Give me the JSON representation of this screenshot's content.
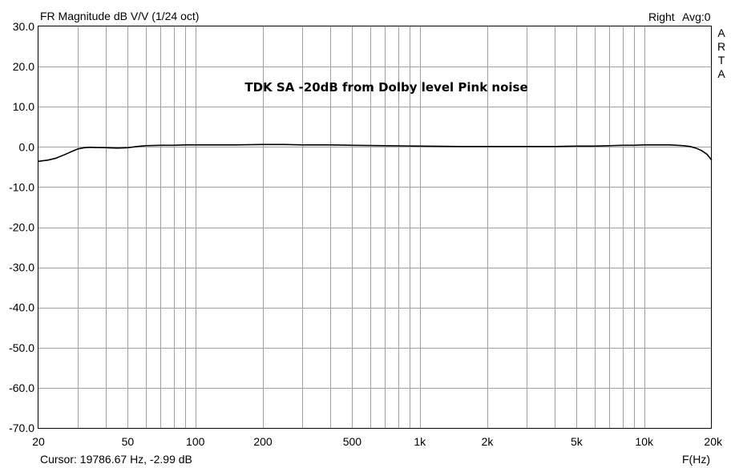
{
  "header": {
    "title": "FR Magnitude dB V/V (1/24 oct)",
    "channel": "Right",
    "averaging": "Avg:0"
  },
  "brand_letters": [
    "A",
    "R",
    "T",
    "A"
  ],
  "footer": {
    "cursor": "Cursor: 19786.67 Hz, -2.99 dB",
    "xaxis_label": "F(Hz)"
  },
  "colors": {
    "grid": "#a0a0a0",
    "trace": "#000000",
    "background": "#ffffff"
  },
  "chart_data": {
    "type": "line",
    "title": "TDK SA -20dB from Dolby level Pink noise",
    "xlabel": "F(Hz)",
    "ylabel": "dB V/V",
    "x_scale": "log",
    "xlim": [
      20,
      20000
    ],
    "ylim": [
      -70,
      30
    ],
    "grid": true,
    "y_ticks": [
      "30.0",
      "20.0",
      "10.0",
      "0.0",
      "-10.0",
      "-20.0",
      "-30.0",
      "-40.0",
      "-50.0",
      "-60.0",
      "-70.0"
    ],
    "x_ticks": [
      {
        "value": 20,
        "label": "20"
      },
      {
        "value": 50,
        "label": "50"
      },
      {
        "value": 100,
        "label": "100"
      },
      {
        "value": 200,
        "label": "200"
      },
      {
        "value": 500,
        "label": "500"
      },
      {
        "value": 1000,
        "label": "1k"
      },
      {
        "value": 2000,
        "label": "2k"
      },
      {
        "value": 5000,
        "label": "5k"
      },
      {
        "value": 10000,
        "label": "10k"
      },
      {
        "value": 20000,
        "label": "20k"
      }
    ],
    "series": [
      {
        "x": [
          20,
          22,
          24,
          26,
          28,
          30,
          32,
          34,
          36,
          40,
          45,
          50,
          55,
          60,
          70,
          80,
          90,
          100,
          120,
          150,
          200,
          250,
          300,
          400,
          500,
          700,
          1000,
          1500,
          2000,
          3000,
          4000,
          5000,
          6000,
          7000,
          8000,
          9000,
          10000,
          11000,
          12000,
          13000,
          14000,
          15000,
          16000,
          17000,
          18000,
          19000,
          19786.67,
          20000
        ],
        "y": [
          -3.6,
          -3.3,
          -2.8,
          -2.0,
          -1.2,
          -0.5,
          -0.2,
          -0.1,
          -0.15,
          -0.2,
          -0.3,
          -0.2,
          0.1,
          0.3,
          0.4,
          0.4,
          0.5,
          0.5,
          0.5,
          0.5,
          0.6,
          0.6,
          0.5,
          0.5,
          0.4,
          0.3,
          0.2,
          0.1,
          0.1,
          0.1,
          0.1,
          0.2,
          0.2,
          0.3,
          0.4,
          0.4,
          0.5,
          0.5,
          0.5,
          0.5,
          0.4,
          0.3,
          0.1,
          -0.3,
          -0.9,
          -1.8,
          -2.99,
          -3.3
        ]
      }
    ]
  }
}
